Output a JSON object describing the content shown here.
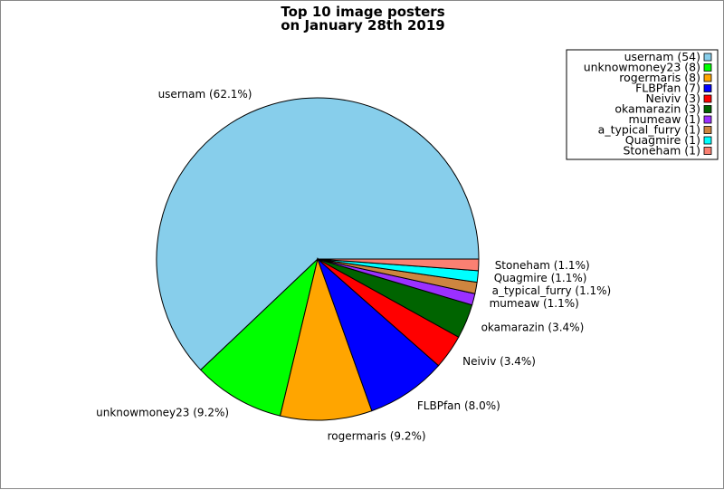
{
  "chart_data": {
    "type": "pie",
    "title_lines": [
      "Top 10 image posters",
      "on January 28th 2019"
    ],
    "slices": [
      {
        "name": "usernam",
        "value": 54,
        "label": "usernam (62.1%)",
        "legend": "usernam (54)",
        "color": "#87ceeb"
      },
      {
        "name": "unknowmoney23",
        "value": 8,
        "label": "unknowmoney23 (9.2%)",
        "legend": "unknowmoney23 (8)",
        "color": "#00ff00"
      },
      {
        "name": "rogermaris",
        "value": 8,
        "label": "rogermaris (9.2%)",
        "legend": "rogermaris (8)",
        "color": "#ffa500"
      },
      {
        "name": "FLBPfan",
        "value": 7,
        "label": "FLBPfan (8.0%)",
        "legend": "FLBPfan (7)",
        "color": "#0000ff"
      },
      {
        "name": "Neiviv",
        "value": 3,
        "label": "Neiviv (3.4%)",
        "legend": "Neiviv (3)",
        "color": "#ff0000"
      },
      {
        "name": "okamarazin",
        "value": 3,
        "label": "okamarazin (3.4%)",
        "legend": "okamarazin (3)",
        "color": "#006400"
      },
      {
        "name": "mumeaw",
        "value": 1,
        "label": "mumeaw (1.1%)",
        "legend": "mumeaw (1)",
        "color": "#9b30ff"
      },
      {
        "name": "a_typical_furry",
        "value": 1,
        "label": "a_typical_furry (1.1%)",
        "legend": "a_typical_furry (1)",
        "color": "#cd853f"
      },
      {
        "name": "Quagmire",
        "value": 1,
        "label": "Quagmire (1.1%)",
        "legend": "Quagmire (1)",
        "color": "#00ffff"
      },
      {
        "name": "Stoneham",
        "value": 1,
        "label": "Stoneham (1.1%)",
        "legend": "Stoneham (1)",
        "color": "#fa8072"
      }
    ],
    "legend_position": "top-right"
  }
}
